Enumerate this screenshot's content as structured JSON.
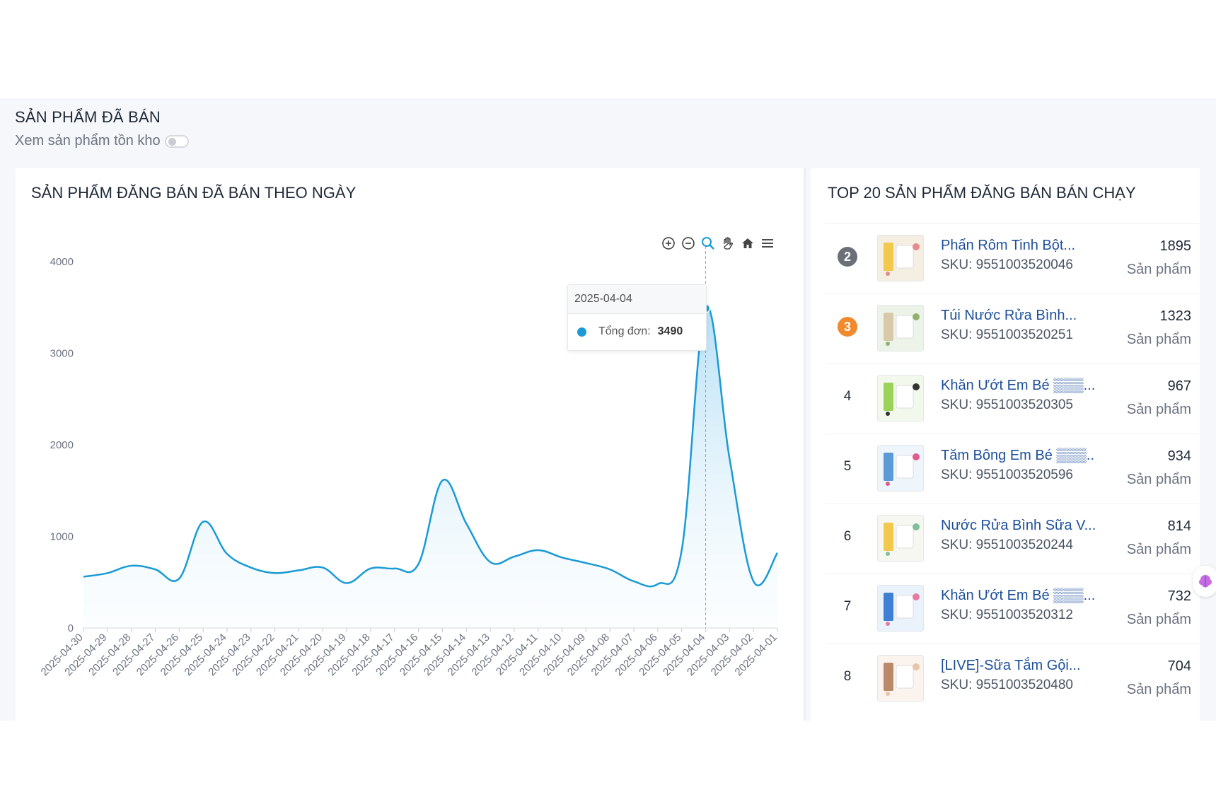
{
  "section": {
    "title": "SẢN PHẨM ĐÃ BÁN",
    "toggle_label": "Xem sản phẩm tồn kho",
    "toggle_on": false
  },
  "chart_card": {
    "title": "SẢN PHẨM ĐĂNG BÁN ĐÃ BÁN THEO NGÀY",
    "toolbar": [
      "zoom-in-icon",
      "zoom-out-icon",
      "zoom-select-icon",
      "pan-hand-icon",
      "home-icon",
      "menu-icon"
    ],
    "tooltip": {
      "date": "2025-04-04",
      "label": "Tổng đơn:",
      "value": "3490"
    }
  },
  "chart_data": {
    "type": "area",
    "ylim": [
      0,
      4000
    ],
    "yticks": [
      "4000",
      "3000",
      "2000",
      "1000",
      "0"
    ],
    "grid": false,
    "line_color": "#1a9ad6",
    "categories": [
      "2025-04-30",
      "2025-04-29",
      "2025-04-28",
      "2025-04-27",
      "2025-04-26",
      "2025-04-25",
      "2025-04-24",
      "2025-04-23",
      "2025-04-22",
      "2025-04-21",
      "2025-04-20",
      "2025-04-19",
      "2025-04-18",
      "2025-04-17",
      "2025-04-16",
      "2025-04-15",
      "2025-04-14",
      "2025-04-13",
      "2025-04-12",
      "2025-04-11",
      "2025-04-10",
      "2025-04-09",
      "2025-04-08",
      "2025-04-07",
      "2025-04-06",
      "2025-04-05",
      "2025-04-04",
      "2025-04-03",
      "2025-04-02",
      "2025-04-01"
    ],
    "series": [
      {
        "name": "Tổng đơn",
        "values": [
          560,
          600,
          680,
          640,
          540,
          1160,
          810,
          660,
          600,
          630,
          660,
          490,
          650,
          650,
          700,
          1610,
          1140,
          720,
          780,
          850,
          770,
          710,
          640,
          510,
          480,
          850,
          3490,
          1850,
          510,
          820
        ]
      }
    ]
  },
  "top_card": {
    "title": "TOP 20 SẢN PHẨM ĐĂNG BÁN BÁN CHẠY",
    "items": [
      {
        "rank": "2",
        "badge_color": "#6b6f78",
        "name": "Phấn Rôm Tinh Bột...",
        "sku": "SKU: 9551003520046",
        "count": "1895",
        "unit": "Sản phẩm"
      },
      {
        "rank": "3",
        "badge_color": "#f08a2c",
        "name": "Túi Nước Rửa Bình...",
        "sku": "SKU: 9551003520251",
        "count": "1323",
        "unit": "Sản phẩm"
      },
      {
        "rank": "4",
        "badge_color": "",
        "name": "Khăn Ướt Em Bé ▒▒▒...",
        "sku": "SKU: 9551003520305",
        "count": "967",
        "unit": "Sản phẩm"
      },
      {
        "rank": "5",
        "badge_color": "",
        "name": "Tăm Bông Em Bé ▒▒▒..",
        "sku": "SKU: 9551003520596",
        "count": "934",
        "unit": "Sản phẩm"
      },
      {
        "rank": "6",
        "badge_color": "",
        "name": "Nước Rửa Bình Sữa V...",
        "sku": "SKU: 9551003520244",
        "count": "814",
        "unit": "Sản phẩm"
      },
      {
        "rank": "7",
        "badge_color": "",
        "name": "Khăn Ướt Em Bé ▒▒▒...",
        "sku": "SKU: 9551003520312",
        "count": "732",
        "unit": "Sản phẩm"
      },
      {
        "rank": "8",
        "badge_color": "",
        "name": "[LIVE]-Sữa Tắm Gội...",
        "sku": "SKU: 9551003520480",
        "count": "704",
        "unit": "Sản phẩm"
      }
    ]
  }
}
